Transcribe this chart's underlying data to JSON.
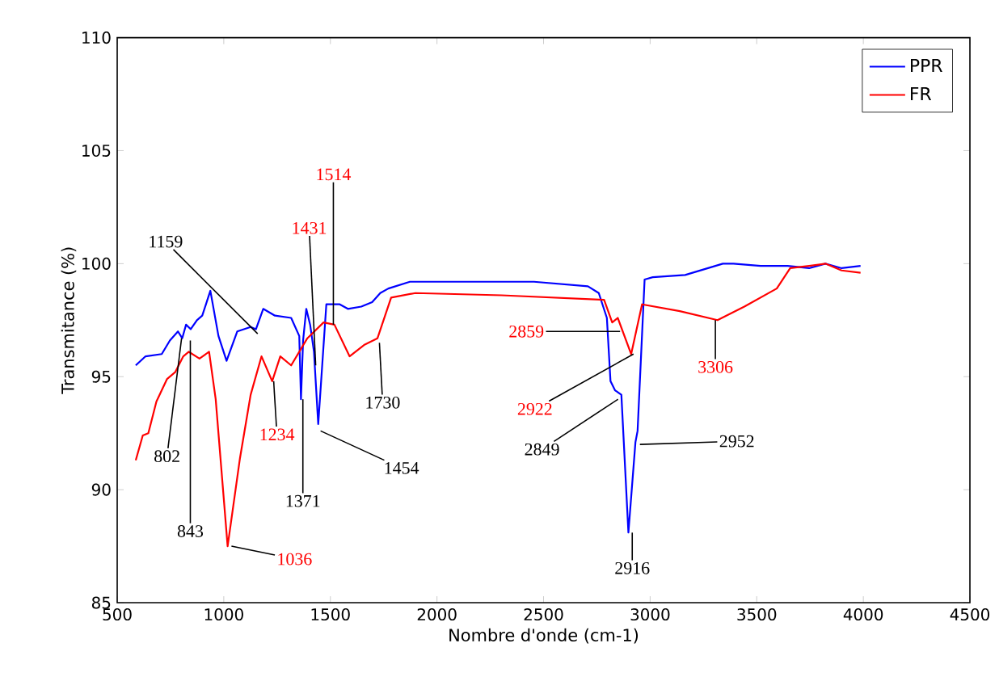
{
  "chart_data": {
    "type": "line",
    "xlabel": "Nombre d'onde (cm-1)",
    "ylabel": "Transmitance (%)",
    "xlim": [
      500,
      4500
    ],
    "xticks": [
      500,
      1000,
      1500,
      2000,
      2500,
      3000,
      3500,
      4000,
      4500
    ],
    "ylim": [
      85,
      110
    ],
    "yticks": [
      85,
      90,
      95,
      100,
      105,
      110
    ],
    "legend": "top right",
    "series": [
      {
        "name": "PPR",
        "color": "#0000ff",
        "x": [
          587,
          633,
          709,
          747,
          785,
          805,
          823,
          845,
          874,
          899,
          937,
          975,
          1013,
          1063,
          1126,
          1151,
          1185,
          1240,
          1316,
          1354,
          1362,
          1372,
          1387,
          1405,
          1423,
          1443,
          1481,
          1544,
          1582,
          1645,
          1696,
          1734,
          1772,
          1873,
          2050,
          2455,
          2708,
          2759,
          2797,
          2814,
          2835,
          2865,
          2898,
          2931,
          2941,
          2974,
          3012,
          3164,
          3341,
          3391,
          3518,
          3645,
          3746,
          3822,
          3898,
          3987
        ],
        "values": [
          95.5,
          95.9,
          96.0,
          96.6,
          97.0,
          96.7,
          97.3,
          97.1,
          97.5,
          97.7,
          98.8,
          96.8,
          95.7,
          97.0,
          97.2,
          97.1,
          98.0,
          97.7,
          97.6,
          96.8,
          94.0,
          96.6,
          98.0,
          97.3,
          96.1,
          92.9,
          98.2,
          98.2,
          98.0,
          98.1,
          98.3,
          98.7,
          98.9,
          99.2,
          99.2,
          99.2,
          99.0,
          98.7,
          97.6,
          94.8,
          94.4,
          94.2,
          88.1,
          92.1,
          92.6,
          99.3,
          99.4,
          99.5,
          100.0,
          100.0,
          99.9,
          99.9,
          99.8,
          100.0,
          99.8,
          99.9
        ]
      },
      {
        "name": "FR",
        "color": "#ff0000",
        "x": [
          587,
          620,
          646,
          684,
          734,
          772,
          810,
          836,
          886,
          931,
          962,
          1018,
          1076,
          1126,
          1177,
          1227,
          1265,
          1316,
          1392,
          1468,
          1519,
          1590,
          1658,
          1721,
          1785,
          1899,
          2303,
          2784,
          2822,
          2848,
          2911,
          2962,
          3139,
          3316,
          3442,
          3594,
          3657,
          3746,
          3822,
          3898,
          3987
        ],
        "values": [
          91.3,
          92.4,
          92.5,
          93.9,
          94.9,
          95.2,
          95.9,
          96.1,
          95.8,
          96.1,
          94.0,
          87.5,
          91.4,
          94.2,
          95.9,
          94.8,
          95.9,
          95.5,
          96.7,
          97.4,
          97.3,
          95.9,
          96.4,
          96.7,
          98.5,
          98.7,
          98.6,
          98.4,
          97.4,
          97.6,
          96.0,
          98.2,
          97.9,
          97.5,
          98.1,
          98.9,
          99.8,
          99.9,
          100.0,
          99.7,
          99.6
        ]
      }
    ],
    "annotations": [
      {
        "text": "802",
        "x": 802,
        "y": 96.7
      },
      {
        "text": "843",
        "x": 843,
        "y": 96.6
      },
      {
        "text": "1036",
        "x": 1036,
        "y": 87.5
      },
      {
        "text": "1159",
        "x": 1159,
        "y": 96.9
      },
      {
        "text": "1234",
        "x": 1234,
        "y": 94.8
      },
      {
        "text": "1371",
        "x": 1371,
        "y": 94.0
      },
      {
        "text": "1431",
        "x": 1431,
        "y": 95.5
      },
      {
        "text": "1454",
        "x": 1454,
        "y": 92.6
      },
      {
        "text": "1514",
        "x": 1514,
        "y": 97.3
      },
      {
        "text": "1730",
        "x": 1730,
        "y": 96.5
      },
      {
        "text": "2849",
        "x": 2849,
        "y": 94.0
      },
      {
        "text": "2859",
        "x": 2859,
        "y": 97.0
      },
      {
        "text": "2916",
        "x": 2916,
        "y": 88.1
      },
      {
        "text": "2922",
        "x": 2922,
        "y": 96.0
      },
      {
        "text": "2952",
        "x": 2952,
        "y": 92.0
      },
      {
        "text": "3306",
        "x": 3306,
        "y": 97.5
      }
    ]
  }
}
